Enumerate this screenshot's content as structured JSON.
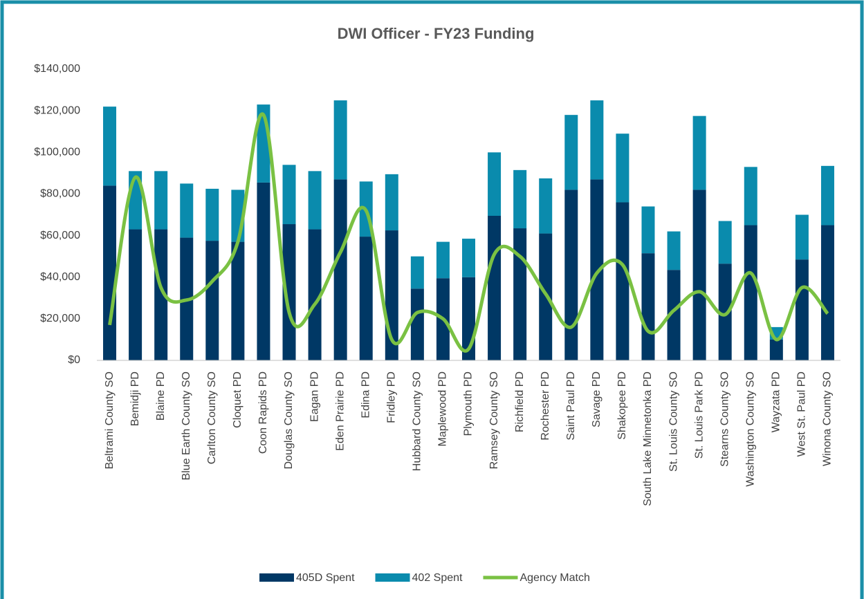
{
  "chart_data": {
    "type": "bar_line",
    "title": "DWI Officer - FY23 Funding",
    "categories": [
      "Beltrami County SO",
      "Bemidji PD",
      "Blaine PD",
      "Blue Earth County SO",
      "Carlton County SO",
      "Cloquet PD",
      "Coon Rapids PD",
      "Douglas County SO",
      "Eagan PD",
      "Eden Prairie PD",
      "Edina PD",
      "Fridley PD",
      "Hubbard County SO",
      "Maplewood PD",
      "Plymouth PD",
      "Ramsey County SO",
      "Richfield PD",
      "Rochester PD",
      "Saint Paul PD",
      "Savage PD",
      "Shakopee PD",
      "South Lake Minnetonka PD",
      "St. Louis County SO",
      "St. Louis Park PD",
      "Stearns County SO",
      "Washington County SO",
      "Wayzata PD",
      "West St. Paul PD",
      "Winona County SO"
    ],
    "series": [
      {
        "name": "405D Spent",
        "color": "#003865",
        "kind": "bar",
        "values": [
          84000,
          63000,
          63000,
          59000,
          57500,
          57000,
          85500,
          65500,
          63000,
          87000,
          59500,
          62500,
          34500,
          39500,
          40000,
          69500,
          63500,
          61000,
          82000,
          87000,
          76000,
          51500,
          43500,
          82000,
          46500,
          65000,
          10000,
          48500,
          65000
        ]
      },
      {
        "name": "402 Spent",
        "color": "#0a8bad",
        "kind": "bar",
        "values": [
          38000,
          28000,
          28000,
          26000,
          25000,
          25000,
          37500,
          28500,
          28000,
          38000,
          26500,
          27000,
          15500,
          17500,
          18500,
          30500,
          28000,
          26500,
          36000,
          38000,
          33000,
          22500,
          18500,
          35500,
          20500,
          28000,
          6000,
          21500,
          28500
        ]
      },
      {
        "name": "Agency Match",
        "color": "#7ac143",
        "kind": "line",
        "values": [
          17000,
          88000,
          35000,
          29000,
          38000,
          57000,
          118000,
          23000,
          27000,
          52000,
          72000,
          10000,
          23000,
          20000,
          5500,
          51000,
          50000,
          32000,
          16000,
          42000,
          46000,
          14000,
          24000,
          33000,
          22000,
          42000,
          10000,
          35000,
          22500
        ]
      }
    ],
    "ylim": [
      0,
      140000
    ],
    "yticks": [
      {
        "value": 0,
        "label": "$0"
      },
      {
        "value": 20000,
        "label": "$20,000"
      },
      {
        "value": 40000,
        "label": "$40,000"
      },
      {
        "value": 60000,
        "label": "$60,000"
      },
      {
        "value": 80000,
        "label": "$80,000"
      },
      {
        "value": 100000,
        "label": "$100,000"
      },
      {
        "value": 120000,
        "label": "$120,000"
      },
      {
        "value": 140000,
        "label": "$140,000"
      }
    ],
    "grid": false,
    "legend": "bottom"
  }
}
